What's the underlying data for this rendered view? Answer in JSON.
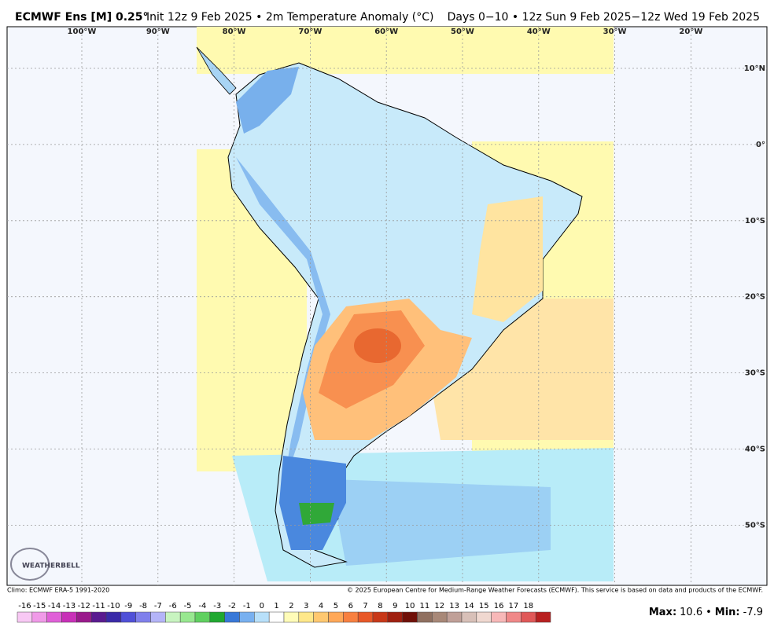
{
  "header": {
    "title_bold": "ECMWF Ens [M] 0.25°",
    "title_rest": "Init 12z 9 Feb 2025 • 2m Temperature Anomaly (°C)",
    "right": "Days 0−10 • 12z Sun 9 Feb 2025−12z Wed 19 Feb 2025"
  },
  "map": {
    "longitude_labels": [
      "100°W",
      "90°W",
      "80°W",
      "70°W",
      "60°W",
      "50°W",
      "40°W",
      "30°W",
      "20°W"
    ],
    "latitude_labels": [
      "10°N",
      "0°",
      "10°S",
      "20°S",
      "30°S",
      "40°S",
      "50°S"
    ],
    "logo": "WEATHERBELL"
  },
  "footer": {
    "left": "Climo: ECMWF ERA-5 1991-2020",
    "right": "© 2025 European Centre for Medium-Range Weather Forecasts (ECMWF). This service is based on data and products of the ECMWF."
  },
  "colorbar": {
    "ticks": [
      -16,
      -15,
      -14,
      -13,
      -12,
      -11,
      -10,
      -9,
      -8,
      -7,
      -6,
      -5,
      -4,
      -3,
      -2,
      -1,
      0,
      1,
      2,
      3,
      4,
      5,
      6,
      7,
      8,
      9,
      10,
      11,
      12,
      13,
      14,
      15,
      16,
      17,
      18
    ],
    "colors": [
      "#f8c8f4",
      "#f09ae8",
      "#e060d8",
      "#c830b8",
      "#9a1a8c",
      "#5a1a90",
      "#3a2aa8",
      "#5050d8",
      "#8080ec",
      "#b4b4f8",
      "#c8f4c0",
      "#98e890",
      "#60d060",
      "#20a830",
      "#3878d8",
      "#78b0f0",
      "#b8e0fa",
      "#ffffff",
      "#fffcb8",
      "#ffe88a",
      "#ffc870",
      "#ffa858",
      "#f88040",
      "#e85828",
      "#c83818",
      "#a02010",
      "#701008",
      "#907060",
      "#a88878",
      "#c0a098",
      "#d8c0b8",
      "#f0d8d0",
      "#f8b8b8",
      "#f08888",
      "#e05858",
      "#b82020"
    ]
  },
  "stats": {
    "max_label": "Max:",
    "max": 10.6,
    "separator": "•",
    "min_label": "Min:",
    "min": -7.9
  }
}
